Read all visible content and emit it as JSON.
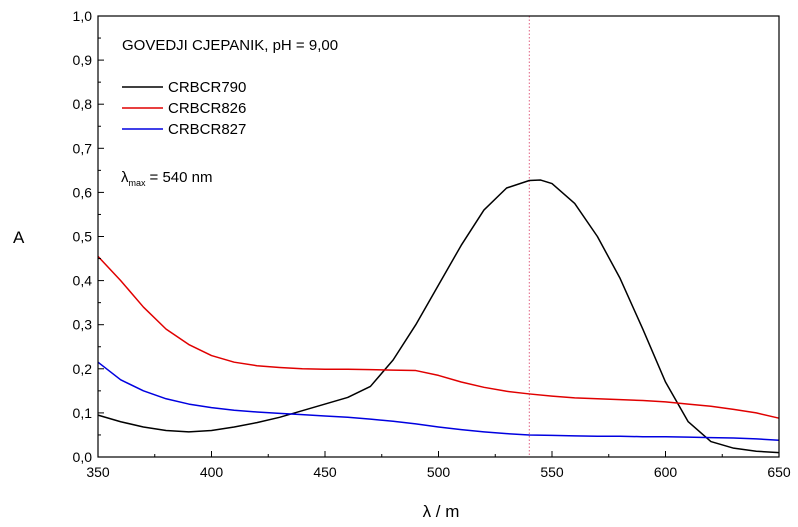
{
  "chart_data": {
    "type": "line",
    "title": "",
    "xlabel": "λ / m",
    "ylabel": "A",
    "xlim": [
      350,
      650
    ],
    "ylim": [
      0,
      1
    ],
    "x_ticks": [
      "350",
      "400",
      "450",
      "500",
      "550",
      "600",
      "650"
    ],
    "y_ticks": [
      "0,0",
      "0,1",
      "0,2",
      "0,3",
      "0,4",
      "0,5",
      "0,6",
      "0,7",
      "0,8",
      "0,9",
      "1,0"
    ],
    "grid": false,
    "legend_position": "top-left",
    "annotation_title": "GOVEDJI CJEPANIK, pH = 9,00",
    "lambda_max": {
      "symbol": "λ",
      "subscript": "max",
      "text": "= 540 nm",
      "value": 540,
      "color": "#e06080"
    },
    "series": [
      {
        "name": "CRBCR790",
        "color": "#000000",
        "x": [
          350,
          360,
          370,
          380,
          390,
          400,
          410,
          420,
          430,
          440,
          450,
          460,
          470,
          480,
          490,
          500,
          510,
          520,
          530,
          540,
          545,
          550,
          560,
          570,
          580,
          590,
          600,
          610,
          620,
          630,
          640,
          650
        ],
        "y": [
          0.095,
          0.08,
          0.068,
          0.06,
          0.057,
          0.06,
          0.068,
          0.078,
          0.09,
          0.105,
          0.12,
          0.135,
          0.16,
          0.22,
          0.3,
          0.39,
          0.48,
          0.56,
          0.61,
          0.627,
          0.628,
          0.62,
          0.575,
          0.5,
          0.405,
          0.29,
          0.17,
          0.08,
          0.035,
          0.02,
          0.013,
          0.01
        ]
      },
      {
        "name": "CRBCR826",
        "color": "#e00000",
        "x": [
          350,
          360,
          370,
          380,
          390,
          400,
          410,
          420,
          430,
          440,
          450,
          460,
          470,
          480,
          490,
          500,
          510,
          520,
          530,
          540,
          550,
          560,
          570,
          580,
          590,
          600,
          610,
          620,
          630,
          640,
          650
        ],
        "y": [
          0.455,
          0.4,
          0.34,
          0.29,
          0.255,
          0.23,
          0.215,
          0.207,
          0.203,
          0.2,
          0.199,
          0.199,
          0.198,
          0.197,
          0.196,
          0.185,
          0.17,
          0.158,
          0.149,
          0.143,
          0.138,
          0.134,
          0.132,
          0.13,
          0.128,
          0.125,
          0.12,
          0.115,
          0.108,
          0.1,
          0.088
        ]
      },
      {
        "name": "CRBCR827",
        "color": "#0000e0",
        "x": [
          350,
          360,
          370,
          380,
          390,
          400,
          410,
          420,
          430,
          440,
          450,
          460,
          470,
          480,
          490,
          500,
          510,
          520,
          530,
          540,
          550,
          560,
          570,
          580,
          590,
          600,
          610,
          620,
          630,
          640,
          650
        ],
        "y": [
          0.215,
          0.175,
          0.15,
          0.132,
          0.12,
          0.112,
          0.106,
          0.102,
          0.099,
          0.096,
          0.093,
          0.09,
          0.086,
          0.081,
          0.075,
          0.068,
          0.062,
          0.057,
          0.053,
          0.05,
          0.049,
          0.048,
          0.047,
          0.047,
          0.046,
          0.046,
          0.045,
          0.044,
          0.043,
          0.041,
          0.038
        ]
      }
    ]
  }
}
